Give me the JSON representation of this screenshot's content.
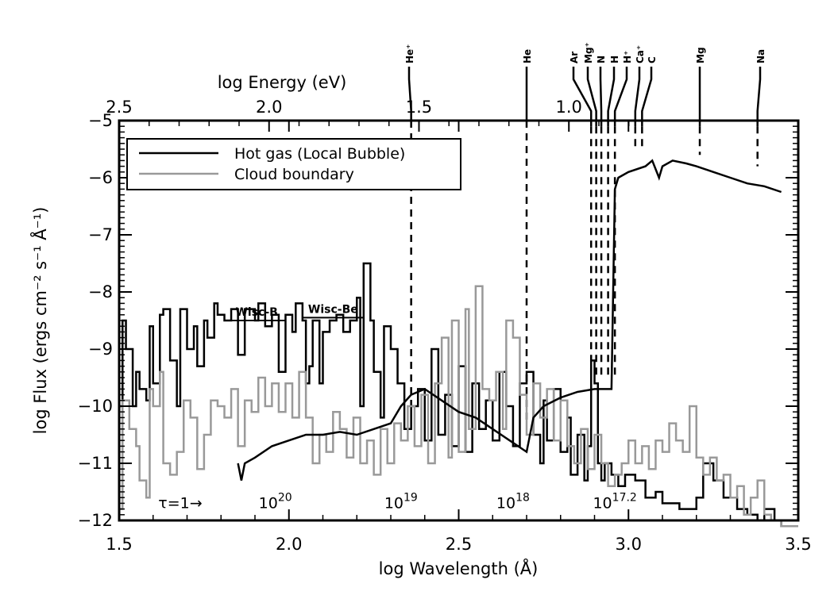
{
  "chart_data": {
    "type": "line",
    "title": "",
    "xlabel": "log Wavelength (Å)",
    "ylabel": "log Flux (ergs cm⁻² s⁻¹ Å⁻¹)",
    "top_xlabel": "log Energy (eV)",
    "xlim": [
      1.5,
      3.5
    ],
    "ylim": [
      -12,
      -5
    ],
    "x_ticks": [
      1.5,
      2.0,
      2.5,
      3.0,
      3.5
    ],
    "x_tick_labels": [
      "1.5",
      "2.0",
      "2.5",
      "3.0",
      "3.5"
    ],
    "y_ticks": [
      -12,
      -11,
      -10,
      -9,
      -8,
      -7,
      -6,
      -5
    ],
    "y_tick_labels": [
      "−12",
      "−11",
      "−10",
      "−9",
      "−8",
      "−7",
      "−6",
      "−5"
    ],
    "top_ticks": [
      2.5,
      2.0,
      1.5,
      1.0
    ],
    "top_tick_labels": [
      "2.5",
      "2.0",
      "1.5",
      "1.0"
    ],
    "legend": {
      "placement": "top-left",
      "entries": [
        {
          "label": "Hot gas (Local Bubble)",
          "color": "#000000"
        },
        {
          "label": "Cloud boundary",
          "color": "#999999"
        }
      ]
    },
    "series": [
      {
        "name": "Hot gas (Local Bubble)",
        "color": "#000000",
        "style": "steps",
        "points": [
          [
            1.5,
            -10.0
          ],
          [
            1.51,
            -8.5
          ],
          [
            1.52,
            -9.0
          ],
          [
            1.54,
            -10.0
          ],
          [
            1.55,
            -9.4
          ],
          [
            1.56,
            -9.7
          ],
          [
            1.58,
            -9.9
          ],
          [
            1.59,
            -8.6
          ],
          [
            1.6,
            -9.6
          ],
          [
            1.62,
            -8.4
          ],
          [
            1.63,
            -8.3
          ],
          [
            1.65,
            -9.2
          ],
          [
            1.67,
            -10.0
          ],
          [
            1.68,
            -8.3
          ],
          [
            1.7,
            -9.0
          ],
          [
            1.72,
            -8.6
          ],
          [
            1.73,
            -9.3
          ],
          [
            1.75,
            -8.5
          ],
          [
            1.76,
            -8.8
          ],
          [
            1.78,
            -8.2
          ],
          [
            1.79,
            -8.4
          ],
          [
            1.81,
            -8.5
          ],
          [
            1.83,
            -8.3
          ],
          [
            1.85,
            -9.1
          ],
          [
            1.87,
            -8.3
          ],
          [
            1.9,
            -8.5
          ],
          [
            1.91,
            -8.2
          ],
          [
            1.93,
            -8.6
          ],
          [
            1.95,
            -8.4
          ],
          [
            1.97,
            -9.4
          ],
          [
            1.99,
            -8.4
          ],
          [
            2.01,
            -8.7
          ],
          [
            2.02,
            -8.2
          ],
          [
            2.04,
            -8.5
          ],
          [
            2.05,
            -9.6
          ],
          [
            2.06,
            -9.3
          ],
          [
            2.07,
            -8.5
          ],
          [
            2.09,
            -9.6
          ],
          [
            2.1,
            -8.7
          ],
          [
            2.12,
            -8.5
          ],
          [
            2.14,
            -8.4
          ],
          [
            2.16,
            -8.7
          ],
          [
            2.18,
            -8.5
          ],
          [
            2.2,
            -8.1
          ],
          [
            2.21,
            -10.0
          ],
          [
            2.22,
            -7.5
          ],
          [
            2.24,
            -8.5
          ],
          [
            2.25,
            -9.4
          ],
          [
            2.27,
            -10.2
          ],
          [
            2.28,
            -8.6
          ],
          [
            2.3,
            -9.0
          ],
          [
            2.32,
            -9.6
          ],
          [
            2.34,
            -10.4
          ],
          [
            2.36,
            -10.0
          ],
          [
            2.38,
            -9.7
          ],
          [
            2.4,
            -10.6
          ],
          [
            2.42,
            -9.0
          ],
          [
            2.44,
            -10.5
          ],
          [
            2.46,
            -9.8
          ],
          [
            2.48,
            -10.7
          ],
          [
            2.5,
            -9.3
          ],
          [
            2.52,
            -10.8
          ],
          [
            2.54,
            -9.6
          ],
          [
            2.56,
            -10.4
          ],
          [
            2.58,
            -9.9
          ],
          [
            2.6,
            -10.6
          ],
          [
            2.62,
            -9.4
          ],
          [
            2.64,
            -10.0
          ],
          [
            2.66,
            -10.7
          ],
          [
            2.68,
            -9.6
          ],
          [
            2.7,
            -9.4
          ],
          [
            2.72,
            -10.5
          ],
          [
            2.74,
            -11.0
          ],
          [
            2.75,
            -9.9
          ],
          [
            2.76,
            -10.6
          ],
          [
            2.78,
            -9.7
          ],
          [
            2.8,
            -10.8
          ],
          [
            2.82,
            -10.2
          ],
          [
            2.83,
            -11.2
          ],
          [
            2.85,
            -10.5
          ],
          [
            2.87,
            -11.3
          ],
          [
            2.88,
            -10.7
          ],
          [
            2.89,
            -9.2
          ],
          [
            2.9,
            -9.6
          ],
          [
            2.91,
            -11.0
          ],
          [
            2.92,
            -11.3
          ],
          [
            2.93,
            -11.0
          ],
          [
            2.95,
            -11.2
          ],
          [
            2.97,
            -11.4
          ],
          [
            2.99,
            -11.2
          ],
          [
            3.02,
            -11.3
          ],
          [
            3.05,
            -11.6
          ],
          [
            3.08,
            -11.5
          ],
          [
            3.1,
            -11.7
          ],
          [
            3.15,
            -11.8
          ],
          [
            3.2,
            -11.6
          ],
          [
            3.22,
            -11.0
          ],
          [
            3.25,
            -11.3
          ],
          [
            3.28,
            -11.6
          ],
          [
            3.32,
            -11.8
          ],
          [
            3.35,
            -11.9
          ],
          [
            3.38,
            -12.0
          ],
          [
            3.4,
            -11.8
          ],
          [
            3.43,
            -12.0
          ],
          [
            3.45,
            -12.1
          ],
          [
            3.5,
            -12.1
          ]
        ]
      },
      {
        "name": "Cloud boundary",
        "color": "#999999",
        "style": "steps",
        "points": [
          [
            1.5,
            -11.8
          ],
          [
            1.51,
            -9.9
          ],
          [
            1.53,
            -10.4
          ],
          [
            1.55,
            -10.7
          ],
          [
            1.56,
            -11.3
          ],
          [
            1.58,
            -11.6
          ],
          [
            1.59,
            -9.7
          ],
          [
            1.6,
            -10.0
          ],
          [
            1.62,
            -9.4
          ],
          [
            1.63,
            -11.0
          ],
          [
            1.65,
            -11.2
          ],
          [
            1.67,
            -10.8
          ],
          [
            1.69,
            -9.9
          ],
          [
            1.71,
            -10.2
          ],
          [
            1.73,
            -11.1
          ],
          [
            1.75,
            -10.5
          ],
          [
            1.77,
            -9.9
          ],
          [
            1.79,
            -10.0
          ],
          [
            1.81,
            -10.2
          ],
          [
            1.83,
            -9.7
          ],
          [
            1.85,
            -10.7
          ],
          [
            1.87,
            -9.9
          ],
          [
            1.89,
            -10.1
          ],
          [
            1.91,
            -9.5
          ],
          [
            1.93,
            -10.0
          ],
          [
            1.95,
            -9.6
          ],
          [
            1.97,
            -10.1
          ],
          [
            1.99,
            -9.6
          ],
          [
            2.01,
            -10.2
          ],
          [
            2.03,
            -9.4
          ],
          [
            2.05,
            -10.2
          ],
          [
            2.07,
            -11.0
          ],
          [
            2.09,
            -10.5
          ],
          [
            2.11,
            -10.8
          ],
          [
            2.13,
            -10.1
          ],
          [
            2.15,
            -10.4
          ],
          [
            2.17,
            -10.9
          ],
          [
            2.19,
            -10.2
          ],
          [
            2.21,
            -11.0
          ],
          [
            2.23,
            -10.6
          ],
          [
            2.25,
            -11.2
          ],
          [
            2.27,
            -10.4
          ],
          [
            2.29,
            -11.0
          ],
          [
            2.31,
            -10.3
          ],
          [
            2.33,
            -10.6
          ],
          [
            2.35,
            -10.0
          ],
          [
            2.37,
            -10.7
          ],
          [
            2.39,
            -9.8
          ],
          [
            2.41,
            -11.0
          ],
          [
            2.43,
            -9.6
          ],
          [
            2.45,
            -8.8
          ],
          [
            2.47,
            -10.9
          ],
          [
            2.48,
            -8.5
          ],
          [
            2.5,
            -10.8
          ],
          [
            2.52,
            -8.3
          ],
          [
            2.53,
            -10.4
          ],
          [
            2.55,
            -7.9
          ],
          [
            2.57,
            -9.7
          ],
          [
            2.59,
            -9.9
          ],
          [
            2.61,
            -9.4
          ],
          [
            2.63,
            -10.4
          ],
          [
            2.64,
            -8.5
          ],
          [
            2.66,
            -8.8
          ],
          [
            2.68,
            -9.8
          ],
          [
            2.7,
            -10.5
          ],
          [
            2.72,
            -9.6
          ],
          [
            2.74,
            -10.2
          ],
          [
            2.76,
            -9.7
          ],
          [
            2.78,
            -10.6
          ],
          [
            2.8,
            -9.9
          ],
          [
            2.82,
            -10.7
          ],
          [
            2.84,
            -11.0
          ],
          [
            2.86,
            -10.4
          ],
          [
            2.88,
            -11.1
          ],
          [
            2.9,
            -10.5
          ],
          [
            2.92,
            -11.0
          ],
          [
            2.94,
            -11.4
          ],
          [
            2.96,
            -11.2
          ],
          [
            2.98,
            -11.0
          ],
          [
            3.0,
            -10.6
          ],
          [
            3.02,
            -11.0
          ],
          [
            3.04,
            -10.7
          ],
          [
            3.06,
            -11.1
          ],
          [
            3.08,
            -10.6
          ],
          [
            3.1,
            -10.8
          ],
          [
            3.12,
            -10.3
          ],
          [
            3.14,
            -10.6
          ],
          [
            3.16,
            -10.8
          ],
          [
            3.18,
            -10.0
          ],
          [
            3.2,
            -10.9
          ],
          [
            3.22,
            -11.2
          ],
          [
            3.24,
            -10.9
          ],
          [
            3.26,
            -11.3
          ],
          [
            3.28,
            -11.2
          ],
          [
            3.3,
            -11.6
          ],
          [
            3.32,
            -11.4
          ],
          [
            3.34,
            -11.9
          ],
          [
            3.36,
            -11.6
          ],
          [
            3.38,
            -11.3
          ],
          [
            3.4,
            -11.9
          ],
          [
            3.42,
            -12.0
          ],
          [
            3.45,
            -12.1
          ],
          [
            3.5,
            -12.1
          ]
        ]
      },
      {
        "name": "",
        "color": "#000000",
        "style": "smooth",
        "points": [
          [
            1.85,
            -11.0
          ],
          [
            1.86,
            -11.3
          ],
          [
            1.87,
            -11.0
          ],
          [
            1.9,
            -10.9
          ],
          [
            1.95,
            -10.7
          ],
          [
            2.0,
            -10.6
          ],
          [
            2.05,
            -10.5
          ],
          [
            2.1,
            -10.5
          ],
          [
            2.15,
            -10.45
          ],
          [
            2.2,
            -10.5
          ],
          [
            2.25,
            -10.4
          ],
          [
            2.3,
            -10.3
          ],
          [
            2.33,
            -10.0
          ],
          [
            2.36,
            -9.8
          ],
          [
            2.38,
            -9.75
          ],
          [
            2.4,
            -9.7
          ],
          [
            2.45,
            -9.9
          ],
          [
            2.5,
            -10.1
          ],
          [
            2.55,
            -10.2
          ],
          [
            2.6,
            -10.4
          ],
          [
            2.65,
            -10.6
          ],
          [
            2.7,
            -10.8
          ],
          [
            2.72,
            -10.2
          ],
          [
            2.75,
            -10.0
          ],
          [
            2.8,
            -9.85
          ],
          [
            2.85,
            -9.75
          ],
          [
            2.9,
            -9.7
          ],
          [
            2.95,
            -9.7
          ],
          [
            2.96,
            -6.2
          ],
          [
            2.97,
            -6.0
          ],
          [
            3.0,
            -5.9
          ],
          [
            3.05,
            -5.8
          ],
          [
            3.07,
            -5.7
          ],
          [
            3.09,
            -6.0
          ],
          [
            3.1,
            -5.8
          ],
          [
            3.13,
            -5.7
          ],
          [
            3.17,
            -5.75
          ],
          [
            3.2,
            -5.8
          ],
          [
            3.25,
            -5.9
          ],
          [
            3.3,
            -6.0
          ],
          [
            3.35,
            -6.1
          ],
          [
            3.4,
            -6.15
          ],
          [
            3.45,
            -6.25
          ]
        ]
      }
    ],
    "ion_edges": [
      {
        "label": "He⁺",
        "x": 2.36,
        "dash_top": -5.0,
        "dash_bottom": -10.0
      },
      {
        "label": "He",
        "x": 2.7,
        "dash_top": -5.0,
        "dash_bottom": -10.3
      },
      {
        "label": "Ar",
        "x": 2.89,
        "dash_top": -5.1,
        "dash_bottom": -9.5
      },
      {
        "label": "Mg⁺",
        "x": 2.905,
        "dash_top": -5.1,
        "dash_bottom": -9.5
      },
      {
        "label": "N",
        "x": 2.92,
        "dash_top": -5.1,
        "dash_bottom": -9.5
      },
      {
        "label": "H",
        "x": 2.94,
        "dash_top": -5.1,
        "dash_bottom": -9.5
      },
      {
        "label": "H⁺",
        "x": 2.96,
        "dash_top": -5.1,
        "dash_bottom": -9.5
      },
      {
        "label": "Ca⁺",
        "x": 3.02,
        "dash_top": -5.1,
        "dash_bottom": -5.5
      },
      {
        "label": "C",
        "x": 3.04,
        "dash_top": -5.1,
        "dash_bottom": -5.5
      },
      {
        "label": "Mg",
        "x": 3.21,
        "dash_top": -5.1,
        "dash_bottom": -5.6
      },
      {
        "label": "Na",
        "x": 3.38,
        "dash_top": -5.1,
        "dash_bottom": -5.8
      }
    ],
    "annotations": [
      {
        "label": "Wisc-B",
        "x1": 1.82,
        "x2": 1.99,
        "y": -8.5
      },
      {
        "label": "Wisc-Be",
        "x1": 2.04,
        "x2": 2.22,
        "y": -8.45
      }
    ],
    "column_density": {
      "tau_label": "τ=1→",
      "tau_x": 1.68,
      "labels": [
        {
          "base": "10",
          "exp": "20",
          "x": 1.96
        },
        {
          "base": "10",
          "exp": "19",
          "x": 2.33
        },
        {
          "base": "10",
          "exp": "18",
          "x": 2.66
        },
        {
          "base": "10",
          "exp": "17.2",
          "x": 2.96
        }
      ],
      "y": -11.7
    }
  }
}
